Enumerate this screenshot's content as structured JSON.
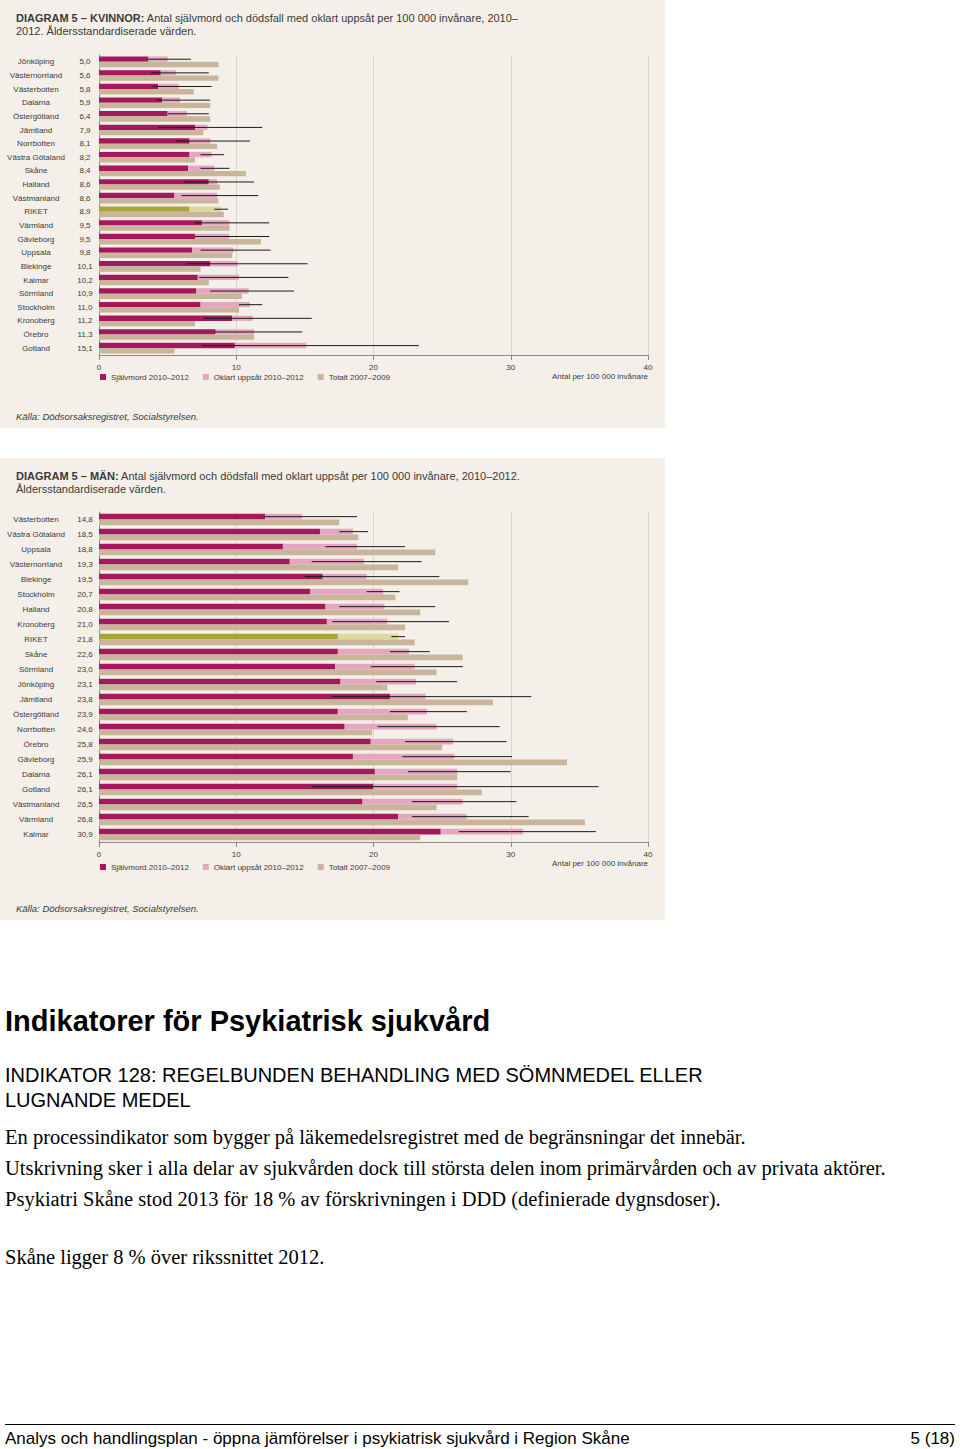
{
  "chart_data": [
    {
      "type": "bar",
      "orientation": "horizontal",
      "grid": true,
      "legend": "bottom",
      "title": "DIAGRAM 5 – KVINNOR:",
      "subtitle": "Antal självmord och dödsfall med oklart uppsåt per 100 000 invånare, 2010–2012. Åldersstandardiserade värden.",
      "source": "Källa: Dödsorsaksregistret, Socialstyrelsen.",
      "x_label": "Antal per 100 000 invånare",
      "xlim": [
        0,
        40
      ],
      "xticks": [
        0,
        10,
        20,
        30,
        40
      ],
      "categories": [
        "Jönköping",
        "Västernorrland",
        "Västerbotten",
        "Dalarna",
        "Östergötland",
        "Jämtland",
        "Norrbotten",
        "Västra Götaland",
        "Skåne",
        "Halland",
        "Västmanland",
        "RIKET",
        "Värmland",
        "Gävleborg",
        "Uppsala",
        "Blekinge",
        "Kalmar",
        "Sörmland",
        "Stockholm",
        "Kronoberg",
        "Örebro",
        "Gotland"
      ],
      "total_labels": [
        "5,0",
        "5,6",
        "5,8",
        "5,9",
        "6,4",
        "7,9",
        "8,1",
        "8,2",
        "8,4",
        "8,6",
        "8,6",
        "8,9",
        "9,5",
        "9,5",
        "9,8",
        "10,1",
        "10,2",
        "10,9",
        "11,0",
        "11,2",
        "11,3",
        "15,1"
      ],
      "series": [
        {
          "name": "Självmord 2010–2012",
          "stacked": true,
          "color": "#a3195b",
          "colors": [
            "#a3195b",
            "#a3195b",
            "#a3195b",
            "#a3195b",
            "#a3195b",
            "#a3195b",
            "#a3195b",
            "#a3195b",
            "#a3195b",
            "#a3195b",
            "#a3195b",
            "#a9a33b",
            "#a3195b",
            "#a3195b",
            "#a3195b",
            "#a3195b",
            "#a3195b",
            "#a3195b",
            "#a3195b",
            "#a3195b",
            "#a3195b",
            "#a3195b"
          ],
          "values": [
            3.6,
            4.5,
            4.3,
            4.6,
            5.0,
            7.0,
            6.6,
            6.6,
            6.5,
            8.0,
            5.5,
            6.6,
            7.5,
            7.0,
            6.8,
            8.1,
            7.2,
            7.1,
            7.4,
            9.7,
            8.5,
            9.9
          ]
        },
        {
          "name": "Oklart uppsåt 2010–2012",
          "stacked": true,
          "color": "#e6a6c0",
          "colors": [
            "#e6a6c0",
            "#e6a6c0",
            "#e6a6c0",
            "#e6a6c0",
            "#e6a6c0",
            "#e6a6c0",
            "#e6a6c0",
            "#e6a6c0",
            "#e6a6c0",
            "#e6a6c0",
            "#e6a6c0",
            "#ddd99c",
            "#e6a6c0",
            "#e6a6c0",
            "#e6a6c0",
            "#e6a6c0",
            "#e6a6c0",
            "#e6a6c0",
            "#e6a6c0",
            "#e6a6c0",
            "#e6a6c0",
            "#e6a6c0"
          ],
          "values": [
            1.4,
            1.1,
            1.5,
            1.3,
            1.4,
            0.9,
            1.5,
            1.6,
            1.9,
            0.6,
            3.1,
            2.3,
            2.0,
            2.5,
            3.0,
            2.0,
            3.0,
            3.8,
            3.6,
            1.5,
            2.8,
            5.2
          ]
        },
        {
          "name": "Totalt 2007–2009",
          "color": "#c8b59c",
          "values": [
            8.7,
            8.7,
            6.9,
            8.1,
            8.1,
            7.6,
            8.6,
            7.0,
            10.7,
            8.8,
            8.7,
            9.1,
            9.5,
            11.8,
            9.7,
            7.4,
            8.0,
            10.4,
            10.2,
            7.0,
            11.3,
            5.5
          ]
        }
      ],
      "error_bars": {
        "low": [
          3.5,
          3.8,
          3.9,
          4.2,
          5.0,
          4.3,
          5.6,
          7.4,
          7.4,
          6.2,
          6.0,
          8.4,
          7.0,
          7.0,
          7.4,
          6.4,
          7.3,
          8.1,
          10.2,
          7.6,
          8.4,
          7.5
        ],
        "high": [
          6.7,
          8.0,
          8.2,
          8.1,
          8.0,
          11.9,
          11.0,
          9.1,
          9.5,
          11.3,
          11.6,
          9.4,
          12.4,
          12.4,
          12.5,
          15.2,
          13.8,
          14.2,
          11.9,
          15.5,
          14.8,
          23.3
        ]
      }
    },
    {
      "type": "bar",
      "orientation": "horizontal",
      "grid": true,
      "legend": "bottom",
      "title": "DIAGRAM 5 – MÄN:",
      "subtitle": "Antal självmord och dödsfall med oklart uppsåt per 100 000 invånare, 2010–2012. Åldersstandardiserade värden.",
      "source": "Källa: Dödsorsaksregistret, Socialstyrelsen.",
      "x_label": "Antal per 100 000 invånare",
      "xlim": [
        0,
        40
      ],
      "xticks": [
        0,
        10,
        20,
        30,
        40
      ],
      "categories": [
        "Västerbotten",
        "Västra Götaland",
        "Uppsala",
        "Västernorrland",
        "Blekinge",
        "Stockholm",
        "Halland",
        "Kronoberg",
        "RIKET",
        "Skåne",
        "Sörmland",
        "Jönköping",
        "Jämtland",
        "Östergötland",
        "Norrbotten",
        "Örebro",
        "Gävleborg",
        "Dalarna",
        "Gotland",
        "Västmanland",
        "Värmland",
        "Kalmar"
      ],
      "total_labels": [
        "14,8",
        "18,5",
        "18,8",
        "19,3",
        "19,5",
        "20,7",
        "20,8",
        "21,0",
        "21,8",
        "22,6",
        "23,0",
        "23,1",
        "23,8",
        "23,9",
        "24,6",
        "25,8",
        "25,9",
        "26,1",
        "26,1",
        "26,5",
        "26,8",
        "30,9"
      ],
      "series": [
        {
          "name": "Självmord 2010–2012",
          "stacked": true,
          "color": "#a3195b",
          "colors": [
            "#a3195b",
            "#a3195b",
            "#a3195b",
            "#a3195b",
            "#a3195b",
            "#a3195b",
            "#a3195b",
            "#a3195b",
            "#a9a33b",
            "#a3195b",
            "#a3195b",
            "#a3195b",
            "#a3195b",
            "#a3195b",
            "#a3195b",
            "#a3195b",
            "#a3195b",
            "#a3195b",
            "#a3195b",
            "#a3195b",
            "#a3195b",
            "#a3195b"
          ],
          "values": [
            12.1,
            16.1,
            13.4,
            13.9,
            16.3,
            15.4,
            16.5,
            16.6,
            17.4,
            17.4,
            17.2,
            17.6,
            21.2,
            17.4,
            17.9,
            19.8,
            18.5,
            20.1,
            20.0,
            19.2,
            21.8,
            24.9
          ]
        },
        {
          "name": "Oklart uppsåt 2010–2012",
          "stacked": true,
          "color": "#e6a6c0",
          "colors": [
            "#e6a6c0",
            "#e6a6c0",
            "#e6a6c0",
            "#e6a6c0",
            "#e6a6c0",
            "#e6a6c0",
            "#e6a6c0",
            "#e6a6c0",
            "#ddd99c",
            "#e6a6c0",
            "#e6a6c0",
            "#e6a6c0",
            "#e6a6c0",
            "#e6a6c0",
            "#e6a6c0",
            "#e6a6c0",
            "#e6a6c0",
            "#e6a6c0",
            "#e6a6c0",
            "#e6a6c0",
            "#e6a6c0",
            "#e6a6c0"
          ],
          "values": [
            2.7,
            2.4,
            5.4,
            5.4,
            3.2,
            5.3,
            4.3,
            4.4,
            4.4,
            5.2,
            5.8,
            5.5,
            2.6,
            6.5,
            6.7,
            6.0,
            7.4,
            6.0,
            6.1,
            7.3,
            5.0,
            6.0
          ]
        },
        {
          "name": "Totalt 2007–2009",
          "color": "#c8b59c",
          "values": [
            17.5,
            18.9,
            24.5,
            21.8,
            26.9,
            21.6,
            23.4,
            22.3,
            23.0,
            26.5,
            24.6,
            21.0,
            28.7,
            22.5,
            19.9,
            25.0,
            34.1,
            26.1,
            27.9,
            24.6,
            35.4,
            23.4
          ]
        }
      ],
      "error_bars": {
        "low": [
          12.0,
          17.5,
          16.5,
          15.5,
          15.0,
          19.5,
          17.5,
          17.0,
          21.3,
          21.2,
          19.8,
          20.2,
          17.0,
          21.2,
          20.3,
          22.3,
          22.1,
          22.5,
          15.5,
          22.8,
          22.8,
          26.2
        ],
        "high": [
          18.8,
          19.6,
          22.3,
          23.5,
          24.8,
          21.9,
          24.5,
          25.5,
          22.3,
          24.1,
          26.5,
          26.1,
          31.5,
          26.8,
          29.2,
          29.7,
          30.1,
          30.0,
          36.4,
          30.4,
          31.3,
          36.2
        ]
      }
    }
  ],
  "document": {
    "heading": "Indikatorer för Psykiatrisk sjukvård",
    "indicator": "INDIKATOR 128: REGELBUNDEN BEHANDLING MED SÖMNMEDEL ELLER LUGNANDE MEDEL",
    "paragraphs": [
      "En processindikator som bygger på läkemedelsregistret med de begränsningar det innebär.",
      "Utskrivning sker i alla delar av sjukvården dock till största delen inom primärvården och av privata aktörer. Psykiatri Skåne stod 2013 för 18 % av förskrivningen i DDD (definierade dygnsdoser).",
      "Skåne ligger 8 % över rikssnittet 2012."
    ],
    "footer": {
      "left": "Analys och handlingsplan - öppna jämförelser i psykiatrisk sjukvård i Region Skåne",
      "right": "5 (18)"
    }
  }
}
